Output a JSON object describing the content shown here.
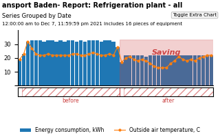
{
  "chart_data": {
    "type": "bar",
    "title": "ansport Baden- Report: Refrigeration plant - all",
    "subtitle": "Series Grouped by Date",
    "note": "12:00:00 am to Dec 7, 11:59:59 pm 2021 Includes 16 pieces of equipment",
    "button": "Toggle Extra Chart",
    "categories": [
      null,
      null,
      null,
      null,
      null,
      null,
      null,
      null,
      null,
      null,
      null,
      null,
      null,
      null,
      null,
      null,
      null,
      null,
      null,
      null,
      null,
      null,
      null,
      null,
      null,
      null,
      null,
      null,
      null,
      null,
      null,
      null,
      null,
      null,
      null,
      null,
      null,
      null,
      null,
      null,
      null,
      null,
      null,
      null,
      null,
      null,
      null,
      null
    ],
    "series": [
      {
        "name": "Energy consumption, kWh",
        "type": "bar",
        "values": [
          19,
          23,
          32,
          33,
          33,
          33,
          32,
          33,
          33,
          32,
          33,
          32,
          33,
          33,
          32,
          33,
          32,
          33,
          33,
          33,
          32,
          33,
          33,
          32,
          28,
          17,
          22,
          22,
          22,
          22,
          22,
          21,
          22,
          22,
          22,
          22,
          22,
          22,
          22,
          22,
          22,
          22,
          22,
          22,
          22,
          22,
          22,
          22
        ]
      },
      {
        "name": "Outside air temperature, C",
        "type": "line",
        "marker": "o",
        "values": [
          19,
          23,
          32,
          27,
          23,
          22,
          22,
          23,
          22,
          22,
          22,
          22,
          22,
          23,
          23,
          22,
          22,
          23,
          24,
          23,
          22,
          22,
          23,
          22,
          28,
          17,
          20,
          21,
          19,
          18,
          19,
          18,
          16,
          14,
          13,
          13,
          13,
          16,
          18,
          21,
          19,
          18,
          19,
          18,
          20,
          21,
          22,
          22
        ]
      }
    ],
    "regions": [
      {
        "label": "Saving",
        "start": 25,
        "end": 47,
        "top": 33.5,
        "color": "#cc4444"
      }
    ],
    "periods": [
      {
        "label": "before",
        "start": 1,
        "end": 24,
        "color": "#cc4444"
      },
      {
        "label": "after",
        "start": 26,
        "end": 47,
        "color": "#cc4444"
      }
    ],
    "ylim": [
      0,
      40
    ],
    "yticks": [
      {
        "value": 0,
        "label": ""
      },
      10,
      20,
      30
    ],
    "tick_labels": "y",
    "legend": "lower center"
  }
}
